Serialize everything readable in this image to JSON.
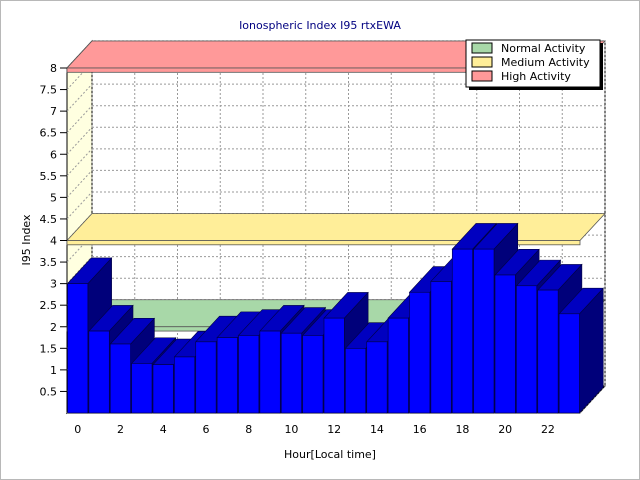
{
  "chart_data": {
    "type": "bar",
    "title": "Ionospheric Index I95 rtxEWA",
    "xlabel": "Hour[Local time]",
    "ylabel": "I95 Index",
    "ylim": [
      0,
      8
    ],
    "y_ticks": [
      "0.5",
      "1",
      "1.5",
      "2",
      "2.5",
      "3",
      "3.5",
      "4",
      "4.5",
      "5",
      "5.5",
      "6",
      "6.5",
      "7",
      "7.5",
      "8"
    ],
    "x_ticks": [
      "0",
      "2",
      "4",
      "6",
      "8",
      "10",
      "12",
      "14",
      "16",
      "18",
      "20",
      "22"
    ],
    "grid": true,
    "legend_position": "top-right",
    "x": [
      0,
      1,
      2,
      3,
      4,
      5,
      6,
      7,
      8,
      9,
      10,
      11,
      12,
      13,
      14,
      15,
      16,
      17,
      18,
      19,
      20,
      21,
      22,
      23
    ],
    "series": [
      {
        "name": "",
        "color": "#0000ff",
        "values": [
          3.0,
          1.9,
          1.6,
          1.15,
          1.12,
          1.3,
          1.65,
          1.75,
          1.8,
          1.9,
          1.85,
          1.8,
          2.2,
          1.5,
          1.65,
          2.2,
          2.8,
          3.05,
          3.8,
          3.8,
          3.2,
          2.95,
          2.85,
          2.3
        ]
      }
    ],
    "bands": [
      {
        "name": "Normal Activity",
        "from": 1.9,
        "to": 2.0,
        "color": "#a8d8a8"
      },
      {
        "name": "Medium Activity",
        "from": 3.9,
        "to": 4.0,
        "color": "#ffee99"
      },
      {
        "name": "High Activity",
        "from": 7.9,
        "to": 8.0,
        "color": "#ff9999"
      }
    ]
  }
}
